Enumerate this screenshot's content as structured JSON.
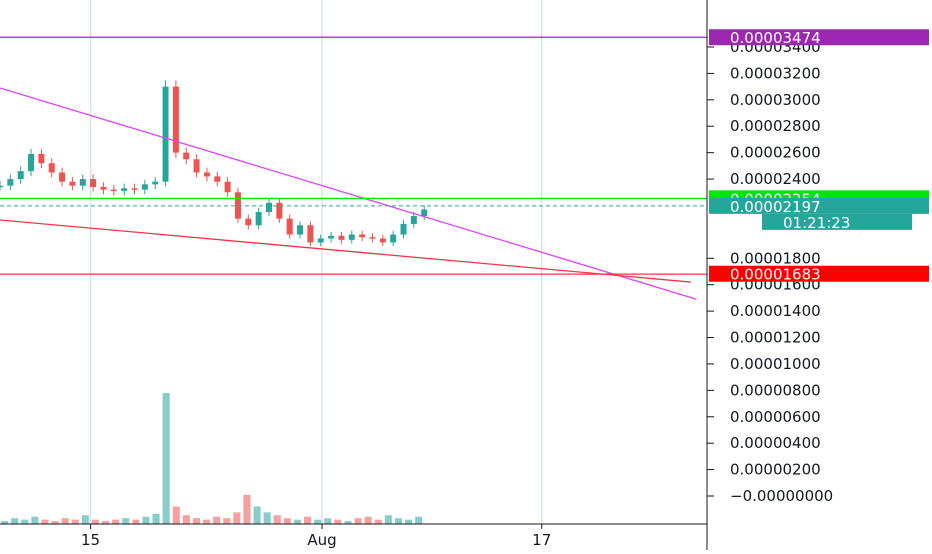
{
  "chart_data": {
    "type": "candlestick",
    "y_axis": {
      "range": [
        -1e-07,
        3.6e-06
      ],
      "ticks": [
        {
          "value": 3.4e-06,
          "label": "0.00003400"
        },
        {
          "value": 3.2e-06,
          "label": "0.00003200"
        },
        {
          "value": 3e-06,
          "label": "0.00003000"
        },
        {
          "value": 2.8e-06,
          "label": "0.00002800"
        },
        {
          "value": 2.6e-06,
          "label": "0.00002600"
        },
        {
          "value": 2.4e-06,
          "label": "0.00002400"
        },
        {
          "value": 1.8e-06,
          "label": "0.00001800"
        },
        {
          "value": 1.6e-06,
          "label": "0.00001600"
        },
        {
          "value": 1.4e-06,
          "label": "0.00001400"
        },
        {
          "value": 1.2e-06,
          "label": "0.00001200"
        },
        {
          "value": 1e-06,
          "label": "0.00001000"
        },
        {
          "value": 8e-07,
          "label": "0.00000800"
        },
        {
          "value": 6e-07,
          "label": "0.00000600"
        },
        {
          "value": 4e-07,
          "label": "0.00000400"
        },
        {
          "value": 2e-07,
          "label": "0.00000200"
        },
        {
          "value": 0.0,
          "label": "−0.00000000"
        }
      ]
    },
    "x_axis": {
      "ticks": [
        {
          "pos": 0.1281,
          "label": "15"
        },
        {
          "pos": 0.4555,
          "label": "Aug"
        },
        {
          "pos": 0.7662,
          "label": "17"
        }
      ]
    },
    "price_tags": [
      {
        "value": 3.474e-06,
        "label": "0.00003474",
        "color": "#9c27b0",
        "line": true
      },
      {
        "value": 2.254e-06,
        "label": "0.00002254",
        "color": "#00e600",
        "line": true
      },
      {
        "value": 2.197e-06,
        "label": "0.00002197",
        "color": "#26a69a",
        "line": false,
        "countdown": "01:21:23"
      },
      {
        "value": 1.683e-06,
        "label": "0.00001683",
        "color": "#ff0000",
        "line": false
      }
    ],
    "trend_lines": [
      {
        "color": "#e040fb",
        "from": [
          0.0,
          3.09e-06
        ],
        "to": [
          0.985,
          1.49e-06
        ]
      },
      {
        "color": "#f23645",
        "from": [
          0.0,
          2.09e-06
        ],
        "to": [
          0.977,
          1.62e-06
        ]
      },
      {
        "color": "#f23645",
        "from": [
          0.0,
          1.68e-06
        ],
        "to": [
          1.0,
          1.68e-06
        ]
      }
    ],
    "price_series": {
      "x_start": 0.0,
      "x_end": 0.6,
      "points": [
        2.35e-06,
        2.4e-06,
        2.46e-06,
        2.59e-06,
        2.52e-06,
        2.45e-06,
        2.38e-06,
        2.35e-06,
        2.4e-06,
        2.34e-06,
        2.32e-06,
        2.31e-06,
        2.33e-06,
        2.32e-06,
        2.36e-06,
        2.38e-06,
        3.1e-06,
        2.6e-06,
        2.55e-06,
        2.45e-06,
        2.42e-06,
        2.38e-06,
        2.3e-06,
        2.1e-06,
        2.05e-06,
        2.15e-06,
        2.22e-06,
        2.1e-06,
        1.98e-06,
        2.05e-06,
        1.92e-06,
        1.95e-06,
        1.97e-06,
        1.94e-06,
        1.98e-06,
        1.96e-06,
        1.95e-06,
        1.92e-06,
        1.98e-06,
        2.06e-06,
        2.12e-06,
        2.17e-06
      ]
    },
    "volume_series": {
      "x_start": 0.0,
      "x_end": 0.6,
      "values": [
        2,
        4,
        3,
        5,
        3,
        2,
        4,
        3,
        6,
        3,
        2,
        3,
        4,
        3,
        5,
        7,
        90,
        12,
        6,
        4,
        3,
        5,
        4,
        8,
        20,
        12,
        8,
        6,
        4,
        3,
        5,
        3,
        4,
        3,
        2,
        4,
        5,
        3,
        6,
        4,
        3,
        5
      ]
    },
    "colors": {
      "up": "#26a69a",
      "down": "#ef5350",
      "axis_bg": "#ffffff",
      "grid": "#e0e3eb"
    }
  }
}
